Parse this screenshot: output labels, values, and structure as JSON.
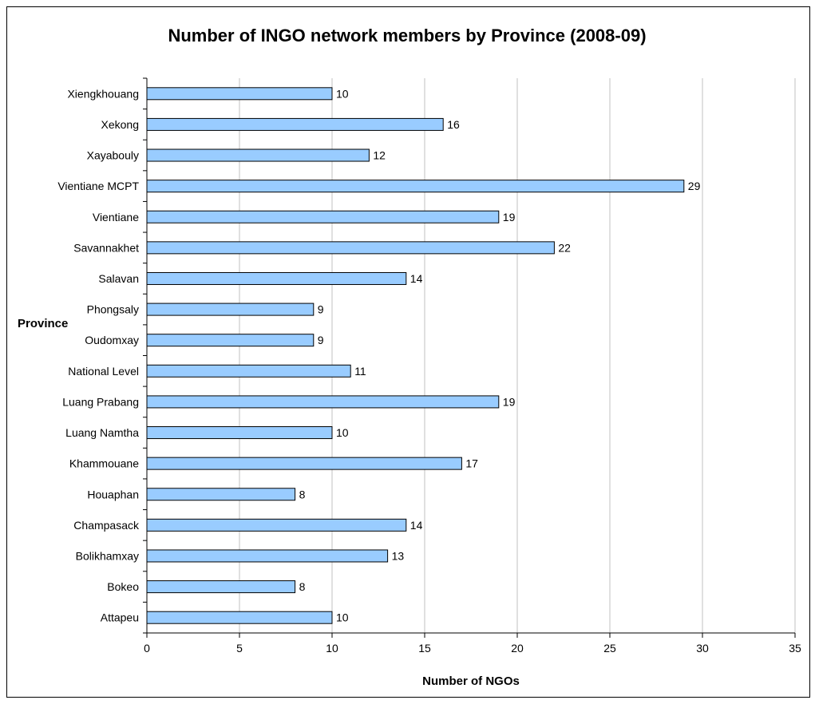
{
  "chart_data": {
    "type": "bar",
    "orientation": "horizontal",
    "title": "Number of INGO network members by Province (2008-09)",
    "xlabel": "Number of NGOs",
    "ylabel": "Province",
    "xlim": [
      0,
      35
    ],
    "xticks": [
      "0",
      "5",
      "10",
      "15",
      "20",
      "25",
      "30",
      "35"
    ],
    "grid": "vertical",
    "legend": "none",
    "categories": [
      "Xiengkhouang",
      "Xekong",
      "Xayabouly",
      "Vientiane MCPT",
      "Vientiane",
      "Savannakhet",
      "Salavan",
      "Phongsaly",
      "Oudomxay",
      "National Level",
      "Luang Prabang",
      "Luang Namtha",
      "Khammouane",
      "Houaphan",
      "Champasack",
      "Bolikhamxay",
      "Bokeo",
      "Attapeu"
    ],
    "values": [
      10,
      16,
      12,
      29,
      19,
      22,
      14,
      9,
      9,
      11,
      19,
      10,
      17,
      8,
      14,
      13,
      8,
      10
    ],
    "bar_color": "#99ccff",
    "bar_border": "#000000",
    "grid_color": "#c0c0c0"
  }
}
